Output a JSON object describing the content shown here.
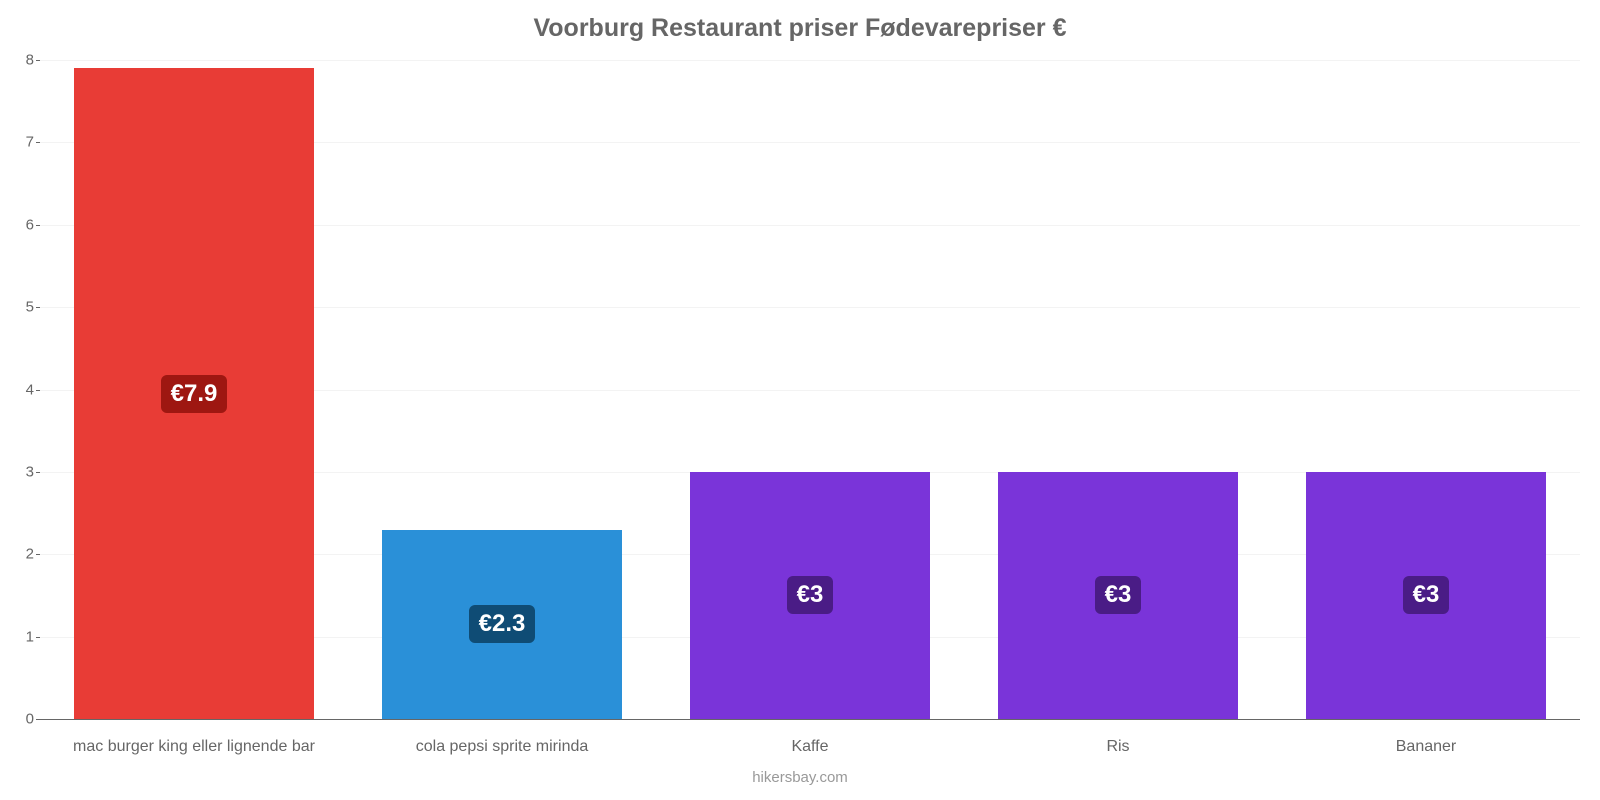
{
  "chart": {
    "type": "bar",
    "title": "Voorburg Restaurant priser Fødevarepriser €",
    "title_color": "#666666",
    "title_fontsize": 25,
    "background_color": "#ffffff",
    "grid_color": "#f3f3f3",
    "axis_color": "#666666",
    "label_color": "#666666",
    "label_fontsize": 16,
    "ylim": [
      0,
      8
    ],
    "ytick_step": 1,
    "yticks": [
      0,
      1,
      2,
      3,
      4,
      5,
      6,
      7,
      8
    ],
    "bar_width_pct": 78,
    "badge_fontsize": 24,
    "badge_text_color": "#ffffff",
    "categories": [
      "mac burger king eller lignende bar",
      "cola pepsi sprite mirinda",
      "Kaffe",
      "Ris",
      "Bananer"
    ],
    "values": [
      7.9,
      2.3,
      3,
      3,
      3
    ],
    "value_labels": [
      "€7.9",
      "€2.3",
      "€3",
      "€3",
      "€3"
    ],
    "bar_colors": [
      "#e83c36",
      "#2a90d8",
      "#7a34d9",
      "#7a34d9",
      "#7a34d9"
    ],
    "badge_colors": [
      "#9e1711",
      "#0f4c75",
      "#4a1c86",
      "#4a1c86",
      "#4a1c86"
    ],
    "credit": "hikersbay.com",
    "credit_color": "#999999"
  }
}
